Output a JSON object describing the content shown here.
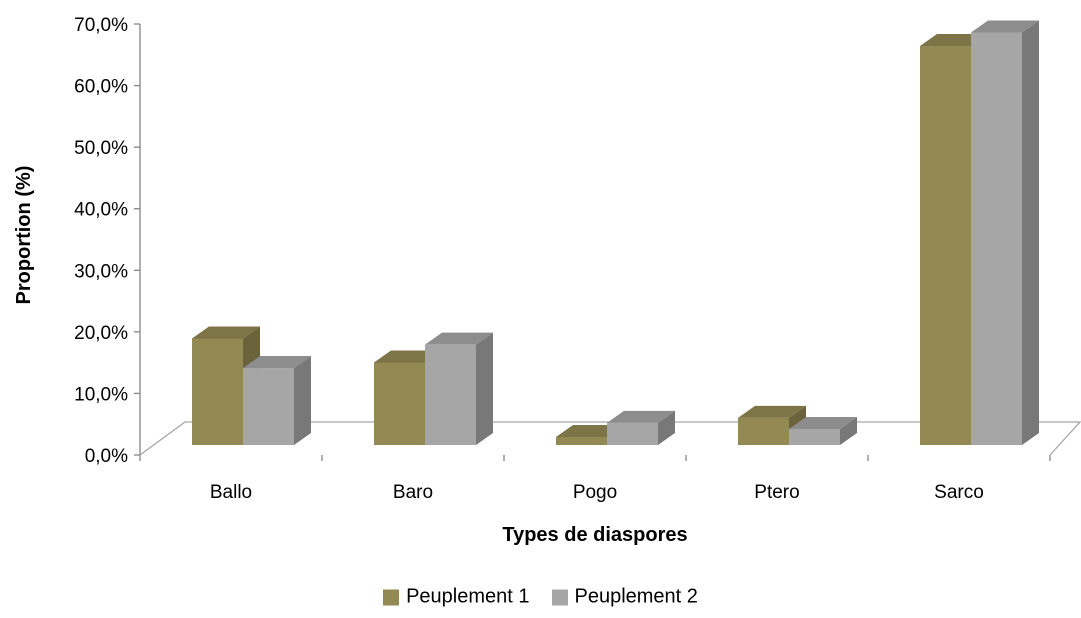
{
  "chart_data": {
    "type": "bar",
    "title": "",
    "xlabel": "Types de diaspores",
    "ylabel": "Proportion (%)",
    "categories": [
      "Ballo",
      "Baro",
      "Pogo",
      "Ptero",
      "Sarco"
    ],
    "series": [
      {
        "name": "Peuplement 1",
        "values": [
          17.3,
          13.4,
          1.3,
          4.4,
          64.8
        ],
        "color": "#938953"
      },
      {
        "name": "Peuplement 2",
        "values": [
          12.5,
          16.3,
          3.6,
          2.6,
          67.0
        ],
        "color": "#a6a6a6"
      }
    ],
    "ylim": [
      0,
      70
    ],
    "yticks": [
      "0,0%",
      "10,0%",
      "20,0%",
      "30,0%",
      "40,0%",
      "50,0%",
      "60,0%",
      "70,0%"
    ],
    "ytick_values": [
      0,
      10,
      20,
      30,
      40,
      50,
      60,
      70
    ],
    "legend_position": "bottom",
    "grid": false
  }
}
